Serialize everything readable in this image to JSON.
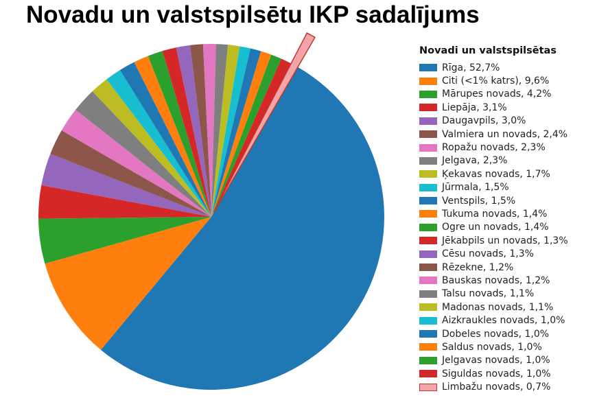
{
  "chart_data": {
    "type": "pie",
    "title": "Novadu un valstspilsētu IKP sadalījums",
    "legend_title": "Novadi un valstspilsētas",
    "legend_position": "right",
    "unit": "%",
    "slices": [
      {
        "label": "Rīga, 52,7%",
        "name": "Rīga",
        "value": 52.7,
        "color": "#1f77b4"
      },
      {
        "label": "Citi (<1% katrs), 9,6%",
        "name": "Citi (<1% katrs)",
        "value": 9.6,
        "color": "#ff7f0e"
      },
      {
        "label": "Mārupes novads, 4,2%",
        "name": "Mārupes novads",
        "value": 4.2,
        "color": "#2ca02c"
      },
      {
        "label": "Liepāja, 3,1%",
        "name": "Liepāja",
        "value": 3.1,
        "color": "#d62728"
      },
      {
        "label": "Daugavpils, 3,0%",
        "name": "Daugavpils",
        "value": 3.0,
        "color": "#9467bd"
      },
      {
        "label": "Valmiera un novads, 2,4%",
        "name": "Valmiera un novads",
        "value": 2.4,
        "color": "#8c564b"
      },
      {
        "label": "Ropažu novads, 2,3%",
        "name": "Ropažu novads",
        "value": 2.3,
        "color": "#e377c2"
      },
      {
        "label": "Jelgava, 2,3%",
        "name": "Jelgava",
        "value": 2.3,
        "color": "#7f7f7f"
      },
      {
        "label": "Ķekavas novads, 1,7%",
        "name": "Ķekavas novads",
        "value": 1.7,
        "color": "#bcbd22"
      },
      {
        "label": "Jūrmala, 1,5%",
        "name": "Jūrmala",
        "value": 1.5,
        "color": "#17becf"
      },
      {
        "label": "Ventspils, 1,5%",
        "name": "Ventspils",
        "value": 1.5,
        "color": "#1f77b4"
      },
      {
        "label": "Tukuma novads, 1,4%",
        "name": "Tukuma novads",
        "value": 1.4,
        "color": "#ff7f0e"
      },
      {
        "label": "Ogre un novads, 1,4%",
        "name": "Ogre un novads",
        "value": 1.4,
        "color": "#2ca02c"
      },
      {
        "label": "Jēkabpils un novads, 1,3%",
        "name": "Jēkabpils un novads",
        "value": 1.3,
        "color": "#d62728"
      },
      {
        "label": "Cēsu novads, 1,3%",
        "name": "Cēsu novads",
        "value": 1.3,
        "color": "#9467bd"
      },
      {
        "label": "Rēzekne, 1,2%",
        "name": "Rēzekne",
        "value": 1.2,
        "color": "#8c564b"
      },
      {
        "label": "Bauskas novads, 1,2%",
        "name": "Bauskas novads",
        "value": 1.2,
        "color": "#e377c2"
      },
      {
        "label": "Talsu novads, 1,1%",
        "name": "Talsu novads",
        "value": 1.1,
        "color": "#7f7f7f"
      },
      {
        "label": "Madonas novads, 1,1%",
        "name": "Madonas novads",
        "value": 1.1,
        "color": "#bcbd22"
      },
      {
        "label": "Aizkraukles novads, 1,0%",
        "name": "Aizkraukles novads",
        "value": 1.0,
        "color": "#17becf"
      },
      {
        "label": "Dobeles novads, 1,0%",
        "name": "Dobeles novads",
        "value": 1.0,
        "color": "#1f77b4"
      },
      {
        "label": "Saldus novads, 1,0%",
        "name": "Saldus novads",
        "value": 1.0,
        "color": "#ff7f0e"
      },
      {
        "label": "Jelgavas novads, 1,0%",
        "name": "Jelgavas novads",
        "value": 1.0,
        "color": "#2ca02c"
      },
      {
        "label": "Siguldas novads, 1,0%",
        "name": "Siguldas novads",
        "value": 1.0,
        "color": "#d62728"
      },
      {
        "label": "Limbažu novads, 0,7%",
        "name": "Limbažu novads",
        "value": 0.7,
        "color": "#f4a3a8",
        "outline": "#c0392b",
        "exploded": true
      }
    ]
  }
}
